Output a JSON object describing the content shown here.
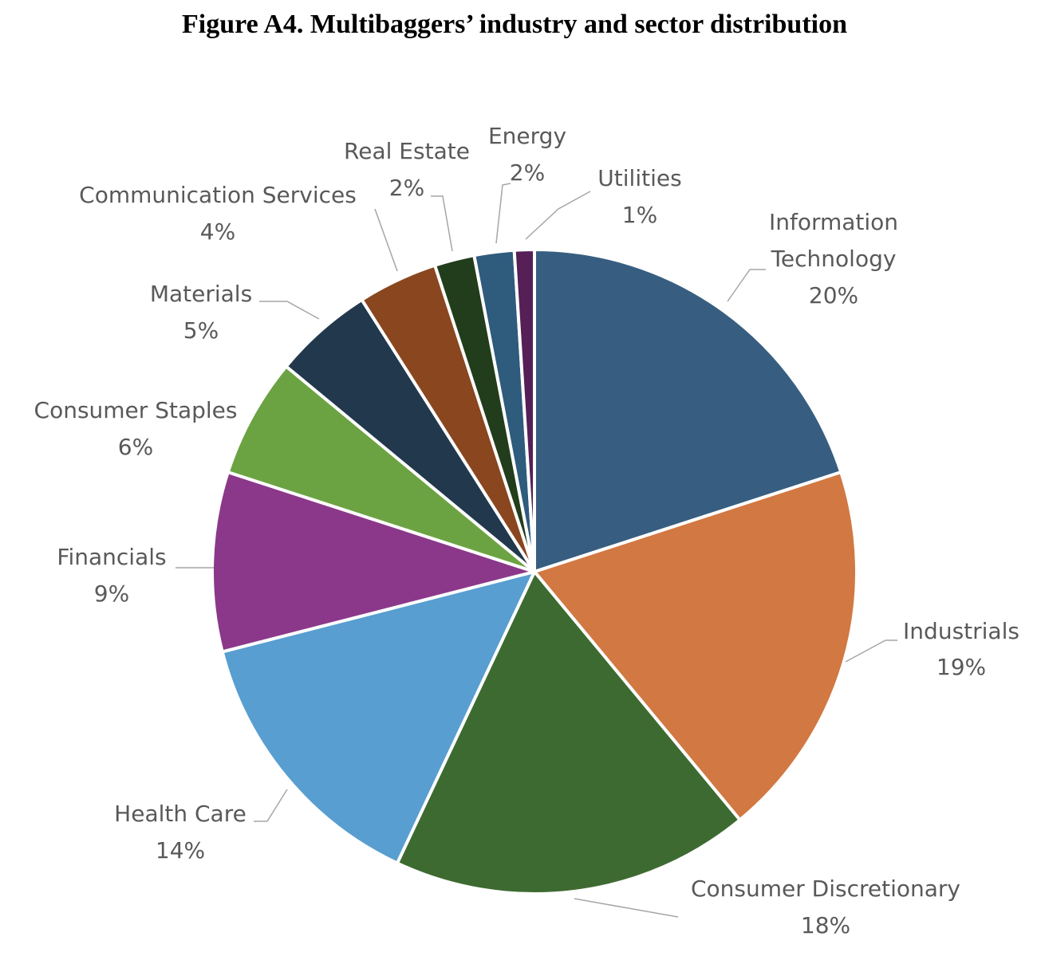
{
  "chart_data": {
    "type": "pie",
    "title": "Figure A4. Multibaggers’ industry and sector distribution",
    "start_angle": "12 o'clock, clockwise",
    "slices": [
      {
        "label": "Information Technology",
        "value": 20,
        "pct_label": "20%",
        "color": "#375e80"
      },
      {
        "label": "Industrials",
        "value": 19,
        "pct_label": "19%",
        "color": "#d27842"
      },
      {
        "label": "Consumer Discretionary",
        "value": 18,
        "pct_label": "18%",
        "color": "#3d6a30"
      },
      {
        "label": "Health Care",
        "value": 14,
        "pct_label": "14%",
        "color": "#589ed0"
      },
      {
        "label": "Financials",
        "value": 9,
        "pct_label": "9%",
        "color": "#8b388a"
      },
      {
        "label": "Consumer Staples",
        "value": 6,
        "pct_label": "6%",
        "color": "#6ca342"
      },
      {
        "label": "Materials",
        "value": 5,
        "pct_label": "5%",
        "color": "#22384c"
      },
      {
        "label": "Communication Services",
        "value": 4,
        "pct_label": "4%",
        "color": "#89461f"
      },
      {
        "label": "Real Estate",
        "value": 2,
        "pct_label": "2%",
        "color": "#223d1b"
      },
      {
        "label": "Energy",
        "value": 2,
        "pct_label": "2%",
        "color": "#2f5b7d"
      },
      {
        "label": "Utilities",
        "value": 1,
        "pct_label": "1%",
        "color": "#561f56"
      }
    ]
  }
}
